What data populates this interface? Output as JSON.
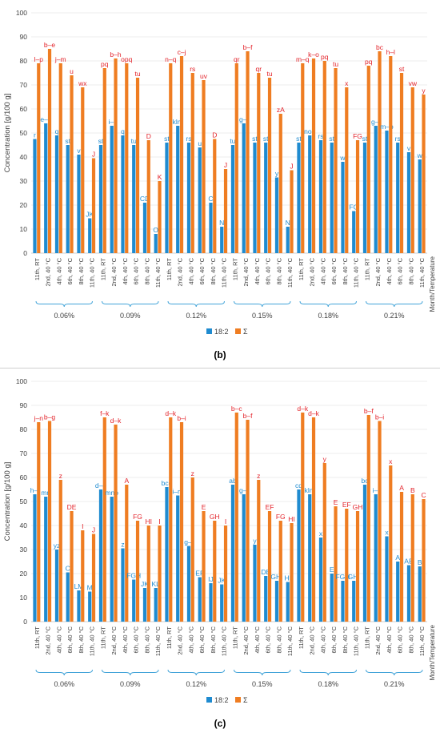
{
  "colors": {
    "s182": "#1f8bd0",
    "sum": "#ef7d22",
    "s182_label": "#1f8bd0",
    "sum_label": "#e3242b"
  },
  "chart_data": [
    {
      "type": "bar",
      "panel_label": "(b)",
      "ylabel": "Concentration [g/100 g]",
      "xlabel": "Month/Temperature",
      "ylim": [
        0,
        100
      ],
      "yticks": [
        0,
        10,
        20,
        30,
        40,
        50,
        60,
        70,
        80,
        90,
        100
      ],
      "grid": true,
      "legend_position": "bottom",
      "groups": [
        "0.06%",
        "0.09%",
        "0.12%",
        "0.15%",
        "0.18%",
        "0.21%"
      ],
      "categories": [
        "11th, RT",
        "2nd, 40 °C",
        "4th, 40 °C",
        "6th, 40 °C",
        "8th, 40 °C",
        "11th, 40 °C"
      ],
      "series": [
        {
          "name": "18:2",
          "values": [
            [
              47.5,
              54,
              49,
              45,
              41,
              14.5
            ],
            [
              45,
              53,
              49,
              45,
              21,
              8
            ],
            [
              46,
              53,
              46,
              44,
              21,
              11
            ],
            [
              45,
              54,
              46,
              46,
              31.5,
              11
            ],
            [
              46,
              49,
              47,
              46,
              38,
              17.5
            ],
            [
              46,
              53,
              51,
              46,
              42,
              39
            ]
          ],
          "labels": [
            [
              "r",
              "e–k",
              "q",
              "st",
              "v",
              "JK"
            ],
            [
              "st",
              "i–l",
              "q",
              "tu",
              "CD",
              "O"
            ],
            [
              "st",
              "klm",
              "rs",
              "u",
              "C",
              "N"
            ],
            [
              "tu",
              "g–l",
              "st",
              "st",
              "y",
              "N"
            ],
            [
              "st",
              "nop",
              "rs",
              "st",
              "w",
              "FG"
            ],
            [
              "st",
              "g–l",
              "m–p",
              "rs",
              "v",
              "w"
            ]
          ]
        },
        {
          "name": "Σ",
          "values": [
            [
              79,
              85,
              79,
              74,
              69,
              39.5
            ],
            [
              77,
              81,
              79,
              73,
              47,
              30
            ],
            [
              79,
              82,
              75,
              72,
              47.5,
              35
            ],
            [
              79,
              84,
              75,
              73,
              58,
              34.5
            ],
            [
              79,
              81,
              80,
              77,
              69,
              47
            ],
            [
              78,
              84,
              82,
              75,
              69,
              66
            ]
          ],
          "labels": [
            [
              "l–p",
              "b–e",
              "j–m",
              "u",
              "wx",
              "J"
            ],
            [
              "pq",
              "b–h",
              "opq",
              "tu",
              "D",
              "K"
            ],
            [
              "n–q",
              "c–j",
              "rs",
              "uv",
              "D",
              "J"
            ],
            [
              "qr",
              "b–f",
              "qr",
              "tu",
              "zA",
              "J"
            ],
            [
              "m–q",
              "k–o",
              "pq",
              "tu",
              "x",
              "FG"
            ],
            [
              "pq",
              "bc",
              "h–l",
              "st",
              "vw",
              "y"
            ]
          ]
        }
      ]
    },
    {
      "type": "bar",
      "panel_label": "(c)",
      "ylabel": "Concentration [g/100 g]",
      "xlabel": "Month/Temperature",
      "ylim": [
        0,
        100
      ],
      "yticks": [
        0,
        10,
        20,
        30,
        40,
        50,
        60,
        70,
        80,
        90,
        100
      ],
      "grid": true,
      "legend_position": "bottom",
      "groups": [
        "0.06%",
        "0.09%",
        "0.12%",
        "0.15%",
        "0.18%",
        "0.21%"
      ],
      "categories": [
        "11th, RT",
        "2nd, 40 °C",
        "4th, 40 °C",
        "6th, 40 °C",
        "8th, 40 °C",
        "11th, 40 °C"
      ],
      "series": [
        {
          "name": "18:2",
          "values": [
            [
              53,
              52,
              30,
              20.5,
              13,
              12.5
            ],
            [
              55,
              52,
              30.5,
              17.5,
              14,
              14
            ],
            [
              56,
              52.5,
              31.5,
              18.5,
              16,
              15.5
            ],
            [
              57,
              53,
              32,
              19,
              17,
              16.5
            ],
            [
              55,
              53,
              35,
              20,
              17,
              17
            ],
            [
              57,
              53,
              35.5,
              25,
              23.5,
              23
            ]
          ],
          "labels": [
            [
              "h–l",
              "mn",
              "yz",
              "C",
              "LM",
              "M"
            ],
            [
              "d–e",
              "mno",
              "z",
              "FGH",
              "JK",
              "KL"
            ],
            [
              "bcd",
              "i–m",
              "g–l",
              "EF",
              "IJ",
              "JK"
            ],
            [
              "ab",
              "g–l",
              "y",
              "DE",
              "GHI",
              "HI"
            ],
            [
              "cd",
              "klm",
              "x",
              "E",
              "FGH",
              "GHI"
            ],
            [
              "bc",
              "i–l",
              "x",
              "A",
              "AB",
              "B"
            ]
          ]
        },
        {
          "name": "Σ",
          "values": [
            [
              83,
              83.5,
              59,
              46,
              38,
              36.5
            ],
            [
              85,
              82,
              57,
              42,
              40,
              40
            ],
            [
              85,
              83,
              60,
              46,
              42,
              40
            ],
            [
              87,
              84,
              59,
              46,
              42,
              41
            ],
            [
              87,
              85,
              66,
              48,
              47,
              46
            ],
            [
              86,
              83.5,
              65,
              54,
              53,
              51
            ]
          ],
          "labels": [
            [
              "j–n",
              "b–g",
              "z",
              "DE",
              "I",
              "J"
            ],
            [
              "f–k",
              "d–k",
              "A",
              "FG",
              "HI",
              "I"
            ],
            [
              "d–k",
              "b–i",
              "z",
              "E",
              "GH",
              "I"
            ],
            [
              "b–c",
              "b–f",
              "z",
              "EF",
              "FG",
              "HI"
            ],
            [
              "d–k",
              "d–k",
              "y",
              "E",
              "EF",
              "GH"
            ],
            [
              "b–f",
              "b–i",
              "x",
              "A",
              "B",
              "C"
            ]
          ]
        }
      ]
    }
  ]
}
